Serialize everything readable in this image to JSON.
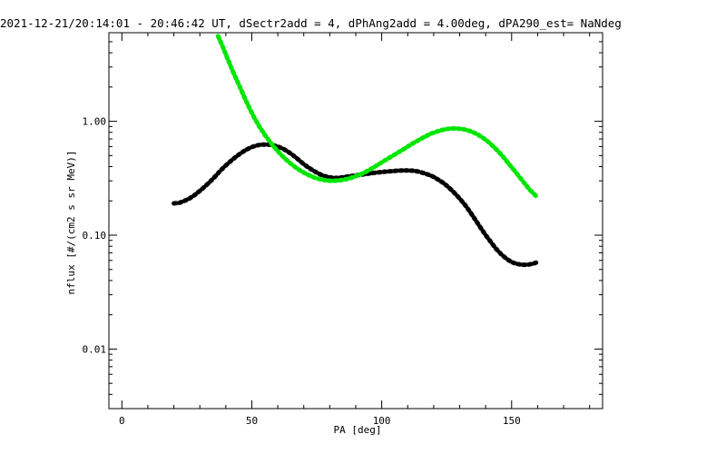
{
  "chart_data": {
    "type": "scatter",
    "title": "2021-12-21/20:14:01 - 20:46:42 UT, dSectr2add = 4, dPhAng2add = 4.00deg, dPA290_est=   NaNdeg",
    "xlabel": "PA [deg]",
    "ylabel": "nflux [#/(cm2 s sr MeV)]",
    "xlim": [
      -5,
      185
    ],
    "ylim": [
      0.003,
      6.0
    ],
    "yscale": "log",
    "grid": false,
    "x_ticks": [
      {
        "value": 0,
        "label": "0"
      },
      {
        "value": 50,
        "label": "50"
      },
      {
        "value": 100,
        "label": "100"
      },
      {
        "value": 150,
        "label": "150"
      }
    ],
    "x_minor_step": 10,
    "y_ticks": [
      {
        "value": 0.01,
        "label": "0.01"
      },
      {
        "value": 0.1,
        "label": "0.10"
      },
      {
        "value": 1.0,
        "label": "1.00"
      }
    ],
    "series": [
      {
        "color": "#000000",
        "x": [
          20,
          22,
          24,
          26,
          28,
          30,
          32,
          34,
          36,
          38,
          40,
          42,
          44,
          46,
          48,
          50,
          52,
          54,
          56,
          58,
          60,
          62,
          64,
          66,
          68,
          70,
          72,
          74,
          76,
          78,
          80,
          82,
          84,
          86,
          88,
          90,
          92,
          94,
          96,
          98,
          100,
          102,
          104,
          106,
          108,
          110,
          112,
          114,
          116,
          118,
          120,
          122,
          124,
          126,
          128,
          130,
          132,
          134,
          136,
          138,
          140,
          142,
          144,
          146,
          148,
          150,
          152,
          154,
          156,
          158,
          160
        ],
        "y": [
          0.19,
          0.192,
          0.2,
          0.21,
          0.225,
          0.245,
          0.268,
          0.296,
          0.33,
          0.37,
          0.41,
          0.45,
          0.49,
          0.53,
          0.565,
          0.595,
          0.615,
          0.625,
          0.625,
          0.618,
          0.6,
          0.575,
          0.54,
          0.5,
          0.46,
          0.42,
          0.39,
          0.365,
          0.345,
          0.33,
          0.322,
          0.318,
          0.32,
          0.325,
          0.33,
          0.335,
          0.34,
          0.345,
          0.35,
          0.355,
          0.358,
          0.362,
          0.365,
          0.368,
          0.37,
          0.37,
          0.368,
          0.362,
          0.352,
          0.34,
          0.325,
          0.305,
          0.285,
          0.26,
          0.235,
          0.21,
          0.185,
          0.16,
          0.137,
          0.117,
          0.1,
          0.087,
          0.076,
          0.068,
          0.062,
          0.058,
          0.056,
          0.055,
          0.055,
          0.056,
          0.058
        ]
      },
      {
        "color": "#00e600",
        "x": [
          37,
          39,
          41,
          43,
          45,
          47,
          49,
          51,
          53,
          55,
          57,
          59,
          61,
          63,
          65,
          67,
          69,
          71,
          73,
          75,
          77,
          79,
          81,
          83,
          85,
          87,
          89,
          91,
          93,
          95,
          97,
          99,
          101,
          103,
          105,
          107,
          109,
          111,
          113,
          115,
          117,
          119,
          121,
          123,
          125,
          127,
          129,
          131,
          133,
          135,
          137,
          139,
          141,
          143,
          145,
          147,
          149,
          151,
          153,
          155,
          157,
          159,
          160
        ],
        "y": [
          5.6,
          4.4,
          3.4,
          2.65,
          2.1,
          1.65,
          1.32,
          1.07,
          0.89,
          0.76,
          0.66,
          0.58,
          0.515,
          0.465,
          0.425,
          0.392,
          0.365,
          0.345,
          0.328,
          0.315,
          0.307,
          0.302,
          0.3,
          0.302,
          0.306,
          0.313,
          0.323,
          0.336,
          0.352,
          0.372,
          0.395,
          0.422,
          0.45,
          0.48,
          0.51,
          0.545,
          0.58,
          0.62,
          0.66,
          0.7,
          0.74,
          0.78,
          0.81,
          0.835,
          0.855,
          0.865,
          0.865,
          0.855,
          0.835,
          0.805,
          0.765,
          0.715,
          0.66,
          0.6,
          0.54,
          0.48,
          0.42,
          0.37,
          0.325,
          0.285,
          0.25,
          0.225,
          0.215
        ]
      }
    ]
  }
}
